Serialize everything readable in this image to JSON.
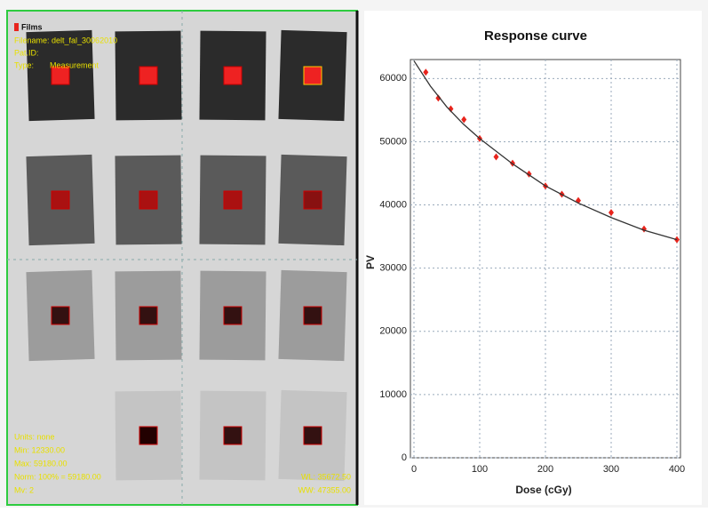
{
  "film_panel": {
    "title": "Films",
    "info_top": [
      "Filename: delt_fal_30062010",
      "Pat.ID:",
      "Type:"
    ],
    "type_value": "Measurement",
    "info_bottom": [
      "Units: none",
      "Min: 12330.00",
      "Max: 59180.00",
      "Norm: 100% = 59180.00",
      "Mv: 2"
    ],
    "window": [
      "WL: 35672.50",
      "WW: 47355.00"
    ]
  },
  "chart_data": {
    "type": "scatter",
    "title": "Response curve",
    "x_label": "Dose (cGy)",
    "y_label": "PV",
    "xlim": [
      0,
      400
    ],
    "ylim": [
      0,
      63000
    ],
    "xticks": [
      0,
      100,
      200,
      300,
      400
    ],
    "yticks": [
      0,
      10000,
      20000,
      30000,
      40000,
      50000,
      60000
    ],
    "grid": true,
    "series": [
      {
        "style": "markers",
        "color": "#e8241c",
        "x": [
          18,
          37,
          56,
          76,
          100,
          125,
          150,
          175,
          200,
          225,
          250,
          300,
          350,
          400
        ],
        "values": [
          61000,
          56900,
          55200,
          53500,
          50500,
          47600,
          46600,
          44900,
          43000,
          41700,
          40700,
          38800,
          36200,
          34500
        ]
      },
      {
        "style": "line",
        "color": "#333333",
        "x": [
          0,
          25,
          50,
          75,
          100,
          150,
          200,
          250,
          300,
          350,
          400
        ],
        "values": [
          62800,
          58800,
          55500,
          52800,
          50500,
          46500,
          43000,
          40300,
          38000,
          36000,
          34500
        ]
      }
    ]
  }
}
